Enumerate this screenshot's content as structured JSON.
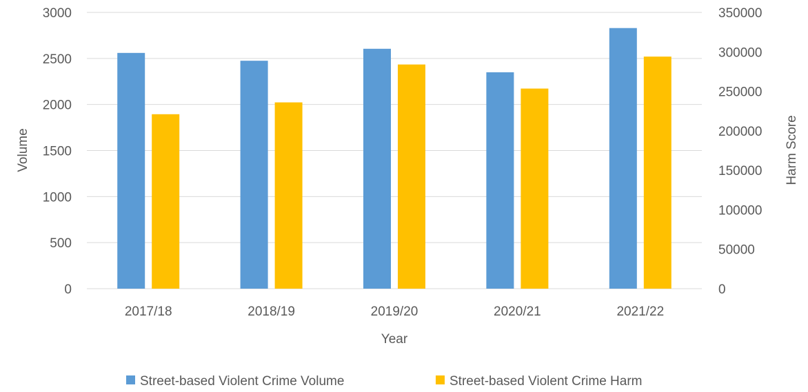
{
  "chart_data": {
    "type": "bar",
    "categories": [
      "2017/18",
      "2018/19",
      "2019/20",
      "2020/21",
      "2021/22"
    ],
    "series": [
      {
        "name": "Street-based Violent Crime Volume",
        "axis": "left",
        "color": "#5B9BD5",
        "values": [
          2560,
          2475,
          2605,
          2350,
          2830
        ]
      },
      {
        "name": "Street-based Violent Crime Harm",
        "axis": "right",
        "color": "#FFC000",
        "values": [
          221000,
          236000,
          284000,
          253500,
          294000
        ]
      }
    ],
    "xlabel": "Year",
    "ylabel": "Volume",
    "y2label": "Harm Score",
    "ylim": [
      0,
      3000
    ],
    "y2lim": [
      0,
      350000
    ],
    "yticks": [
      "0",
      "500",
      "1000",
      "1500",
      "2000",
      "2500",
      "3000"
    ],
    "y2ticks": [
      "0",
      "50000",
      "100000",
      "150000",
      "200000",
      "250000",
      "300000",
      "350000"
    ],
    "grid": true,
    "legend_position": "bottom"
  }
}
